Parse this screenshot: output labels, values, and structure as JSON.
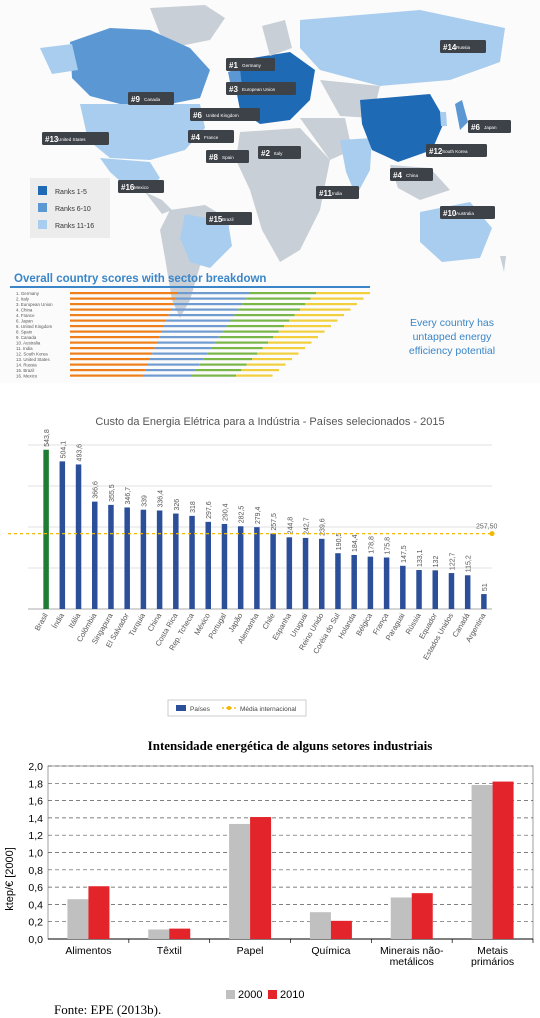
{
  "map_panel": {
    "legend": [
      {
        "label": "Ranks 1-5",
        "color": "#1f6ab5"
      },
      {
        "label": "Ranks 6-10",
        "color": "#5b98d3"
      },
      {
        "label": "Ranks 11-16",
        "color": "#a9cdee"
      }
    ],
    "callouts": [
      {
        "rank": "#1",
        "country": "Germany"
      },
      {
        "rank": "#3",
        "country": "European Union"
      },
      {
        "rank": "#6",
        "country": "United Kingdom"
      },
      {
        "rank": "#4",
        "country": "France"
      },
      {
        "rank": "#8",
        "country": "Spain"
      },
      {
        "rank": "#2",
        "country": "Italy"
      },
      {
        "rank": "#9",
        "country": "Canada"
      },
      {
        "rank": "#13",
        "country": "United States"
      },
      {
        "rank": "#14",
        "country": "Russia"
      },
      {
        "rank": "#6",
        "country": "Japan"
      },
      {
        "rank": "#12",
        "country": "South Korea"
      },
      {
        "rank": "#4",
        "country": "China"
      },
      {
        "rank": "#11",
        "country": "India"
      },
      {
        "rank": "#16",
        "country": "Mexico"
      },
      {
        "rank": "#15",
        "country": "Brazil"
      },
      {
        "rank": "#10",
        "country": "Australia"
      }
    ],
    "breakdown_title": "Overall country scores with sector breakdown",
    "breakdown_countries": [
      "1. Germany",
      "2. Italy",
      "3. European Union",
      "4. China",
      "4. France",
      "6. Japan",
      "6. United Kingdom",
      "8. Spain",
      "9. Canada",
      "10. Australia",
      "11. India",
      "12. South Korea",
      "13. United States",
      "14. Russia",
      "15. Brazil",
      "16. Mexico"
    ],
    "breakdown_note": "Every country has untapped energy efficiency potential",
    "sector_colors": [
      "#ef7f1a",
      "#6f9bd1",
      "#7ab648",
      "#f2cf3c"
    ]
  },
  "chart_data": [
    {
      "type": "bar",
      "title": "Custo da Energia Elétrica para a Indústria - Países selecionados - 2015",
      "categories": [
        "Brasil",
        "Índia",
        "Itália",
        "Colômbia",
        "Singapura",
        "El Salvador",
        "Turquia",
        "China",
        "Costa Rica",
        "Rep. Tcheca",
        "México",
        "Portugal",
        "Japão",
        "Alemanha",
        "Chile",
        "Espanha",
        "Uruguai",
        "Reino Unido",
        "Coréia do Sul",
        "Holanda",
        "Bélgica",
        "França",
        "Paraguai",
        "Rússia",
        "Equador",
        "Estados Unidos",
        "Canadá",
        "Argentina"
      ],
      "series": [
        {
          "name": "Países",
          "values": [
            543.8,
            504.1,
            493.6,
            366.6,
            355.5,
            346.7,
            339,
            336.4,
            326,
            318,
            297.6,
            290.4,
            282.5,
            279.4,
            257.5,
            244.8,
            242.7,
            239.6,
            190.5,
            184.4,
            178.8,
            175.8,
            147.5,
            133.1,
            132,
            122.7,
            115.2,
            51
          ]
        }
      ],
      "reference_line": {
        "name": "Média internacional",
        "value": 257.5,
        "label": "257,50"
      },
      "highlight_color": "#1e7d32",
      "bar_color": "#2c4f9a",
      "ref_color": "#f0b800",
      "ylim": [
        0,
        560
      ],
      "legend_position": "bottom-center"
    },
    {
      "type": "bar",
      "title": "Intensidade energética de alguns setores industriais",
      "categories": [
        "Alimentos",
        "Têxtil",
        "Papel",
        "Química",
        "Minerais não-metálicos",
        "Metais primários"
      ],
      "category_lines": [
        [
          "Alimentos"
        ],
        [
          "Têxtil"
        ],
        [
          "Papel"
        ],
        [
          "Química"
        ],
        [
          "Minerais não-",
          "metálicos"
        ],
        [
          "Metais",
          "primários"
        ]
      ],
      "series": [
        {
          "name": "2000",
          "color": "#c0c0c0",
          "values": [
            0.46,
            0.11,
            1.33,
            0.31,
            0.48,
            1.78
          ]
        },
        {
          "name": "2010",
          "color": "#e3242b",
          "values": [
            0.61,
            0.12,
            1.41,
            0.21,
            0.53,
            1.82
          ]
        }
      ],
      "ylabel": "ktep/€ [2000]",
      "yticks": [
        "0,0",
        "0,2",
        "0,4",
        "0,6",
        "0,8",
        "1,0",
        "1,2",
        "1,4",
        "1,6",
        "1,8",
        "2,0"
      ],
      "ylim": [
        0,
        2.0
      ],
      "legend_position": "bottom-center",
      "source": "Fonte: EPE (2013b)."
    }
  ]
}
